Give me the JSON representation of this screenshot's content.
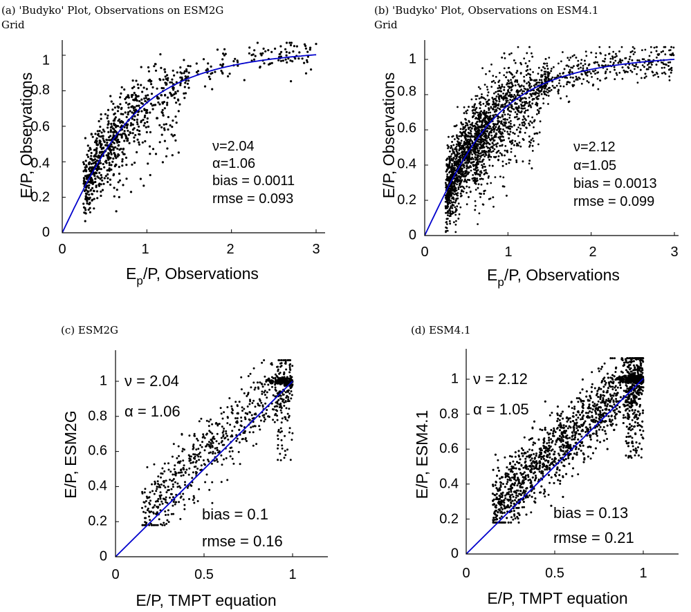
{
  "chart_data": [
    {
      "id": "a",
      "type": "scatter",
      "title_line1": "(a) 'Budyko' Plot, Observations on ESM2G",
      "title_line2": "Grid",
      "xlabel": "E",
      "xlabel_sub": "p",
      "xlabel_rest": "/P, Observations",
      "ylabel": "E/P, Observations",
      "xlim": [
        0,
        3.1
      ],
      "ylim": [
        0,
        1.1
      ],
      "xticks": [
        0,
        1,
        2,
        3
      ],
      "xtick_labels": [
        "0",
        "1",
        "2",
        "3"
      ],
      "yticks": [
        0,
        0.2,
        0.4,
        0.6,
        0.8,
        1
      ],
      "ytick_labels": [
        "0",
        "0.2",
        "0.4",
        "0.6",
        "0.8",
        "1"
      ],
      "annotations": [
        "ν=2.04",
        "α=1.06",
        "bias = 0.0011",
        "rmse = 0.093"
      ],
      "curve": {
        "kind": "budyko",
        "nu": 2.04,
        "alpha": 1.06,
        "color": "#0000cc"
      },
      "points_summary": {
        "count_approx": 900,
        "color": "#000000"
      }
    },
    {
      "id": "b",
      "type": "scatter",
      "title_line1": "(b) 'Budyko' Plot, Observations on ESM4.1",
      "title_line2": "Grid",
      "xlabel": "E",
      "xlabel_sub": "p",
      "xlabel_rest": "/P, Observations",
      "ylabel": "E/P, Observations",
      "xlim": [
        0,
        3.0
      ],
      "ylim": [
        0,
        1.1
      ],
      "xticks": [
        0,
        1,
        2,
        3
      ],
      "xtick_labels": [
        "0",
        "1",
        "2",
        "3"
      ],
      "yticks": [
        0,
        0.2,
        0.4,
        0.6,
        0.8,
        1
      ],
      "ytick_labels": [
        "0",
        "0.2",
        "0.4",
        "0.6",
        "0.8",
        "1"
      ],
      "annotations": [
        "ν=2.12",
        "α=1.05",
        "bias = 0.0013",
        "rmse = 0.099"
      ],
      "curve": {
        "kind": "budyko",
        "nu": 2.12,
        "alpha": 1.05,
        "color": "#0000cc"
      },
      "points_summary": {
        "count_approx": 3000,
        "color": "#000000"
      }
    },
    {
      "id": "c",
      "type": "scatter",
      "title_line1": "(c) ESM2G",
      "title_line2": "",
      "xlabel": "E/P, TMPT equation",
      "ylabel": "E/P, ESM2G",
      "xlim": [
        0,
        1.2
      ],
      "ylim": [
        0,
        1.15
      ],
      "xticks": [
        0,
        0.5,
        1
      ],
      "xtick_labels": [
        "0",
        "0.5",
        "1"
      ],
      "yticks": [
        0,
        0.2,
        0.4,
        0.6,
        0.8,
        1
      ],
      "ytick_labels": [
        "0",
        "0.2",
        "0.4",
        "0.6",
        "0.8",
        "1"
      ],
      "annotations_top": [
        "ν = 2.04",
        "α = 1.06"
      ],
      "annotations_bottom": [
        "bias = 0.1",
        "rmse = 0.16"
      ],
      "curve": {
        "kind": "identity",
        "color": "#0000cc"
      },
      "points_summary": {
        "count_approx": 900,
        "color": "#000000"
      }
    },
    {
      "id": "d",
      "type": "scatter",
      "title_line1": "(d) ESM4.1",
      "title_line2": "",
      "xlabel": "E/P, TMPT equation",
      "ylabel": "E/P, ESM4.1",
      "xlim": [
        0,
        1.2
      ],
      "ylim": [
        0,
        1.15
      ],
      "xticks": [
        0,
        0.5,
        1
      ],
      "xtick_labels": [
        "0",
        "0.5",
        "1"
      ],
      "yticks": [
        0,
        0.2,
        0.4,
        0.6,
        0.8,
        1
      ],
      "ytick_labels": [
        "0",
        "0.2",
        "0.4",
        "0.6",
        "0.8",
        "1"
      ],
      "annotations_top": [
        "ν = 2.12",
        "α = 1.05"
      ],
      "annotations_bottom": [
        "bias = 0.13",
        "rmse = 0.21"
      ],
      "curve": {
        "kind": "identity",
        "color": "#0000cc"
      },
      "points_summary": {
        "count_approx": 3000,
        "color": "#000000"
      }
    }
  ]
}
